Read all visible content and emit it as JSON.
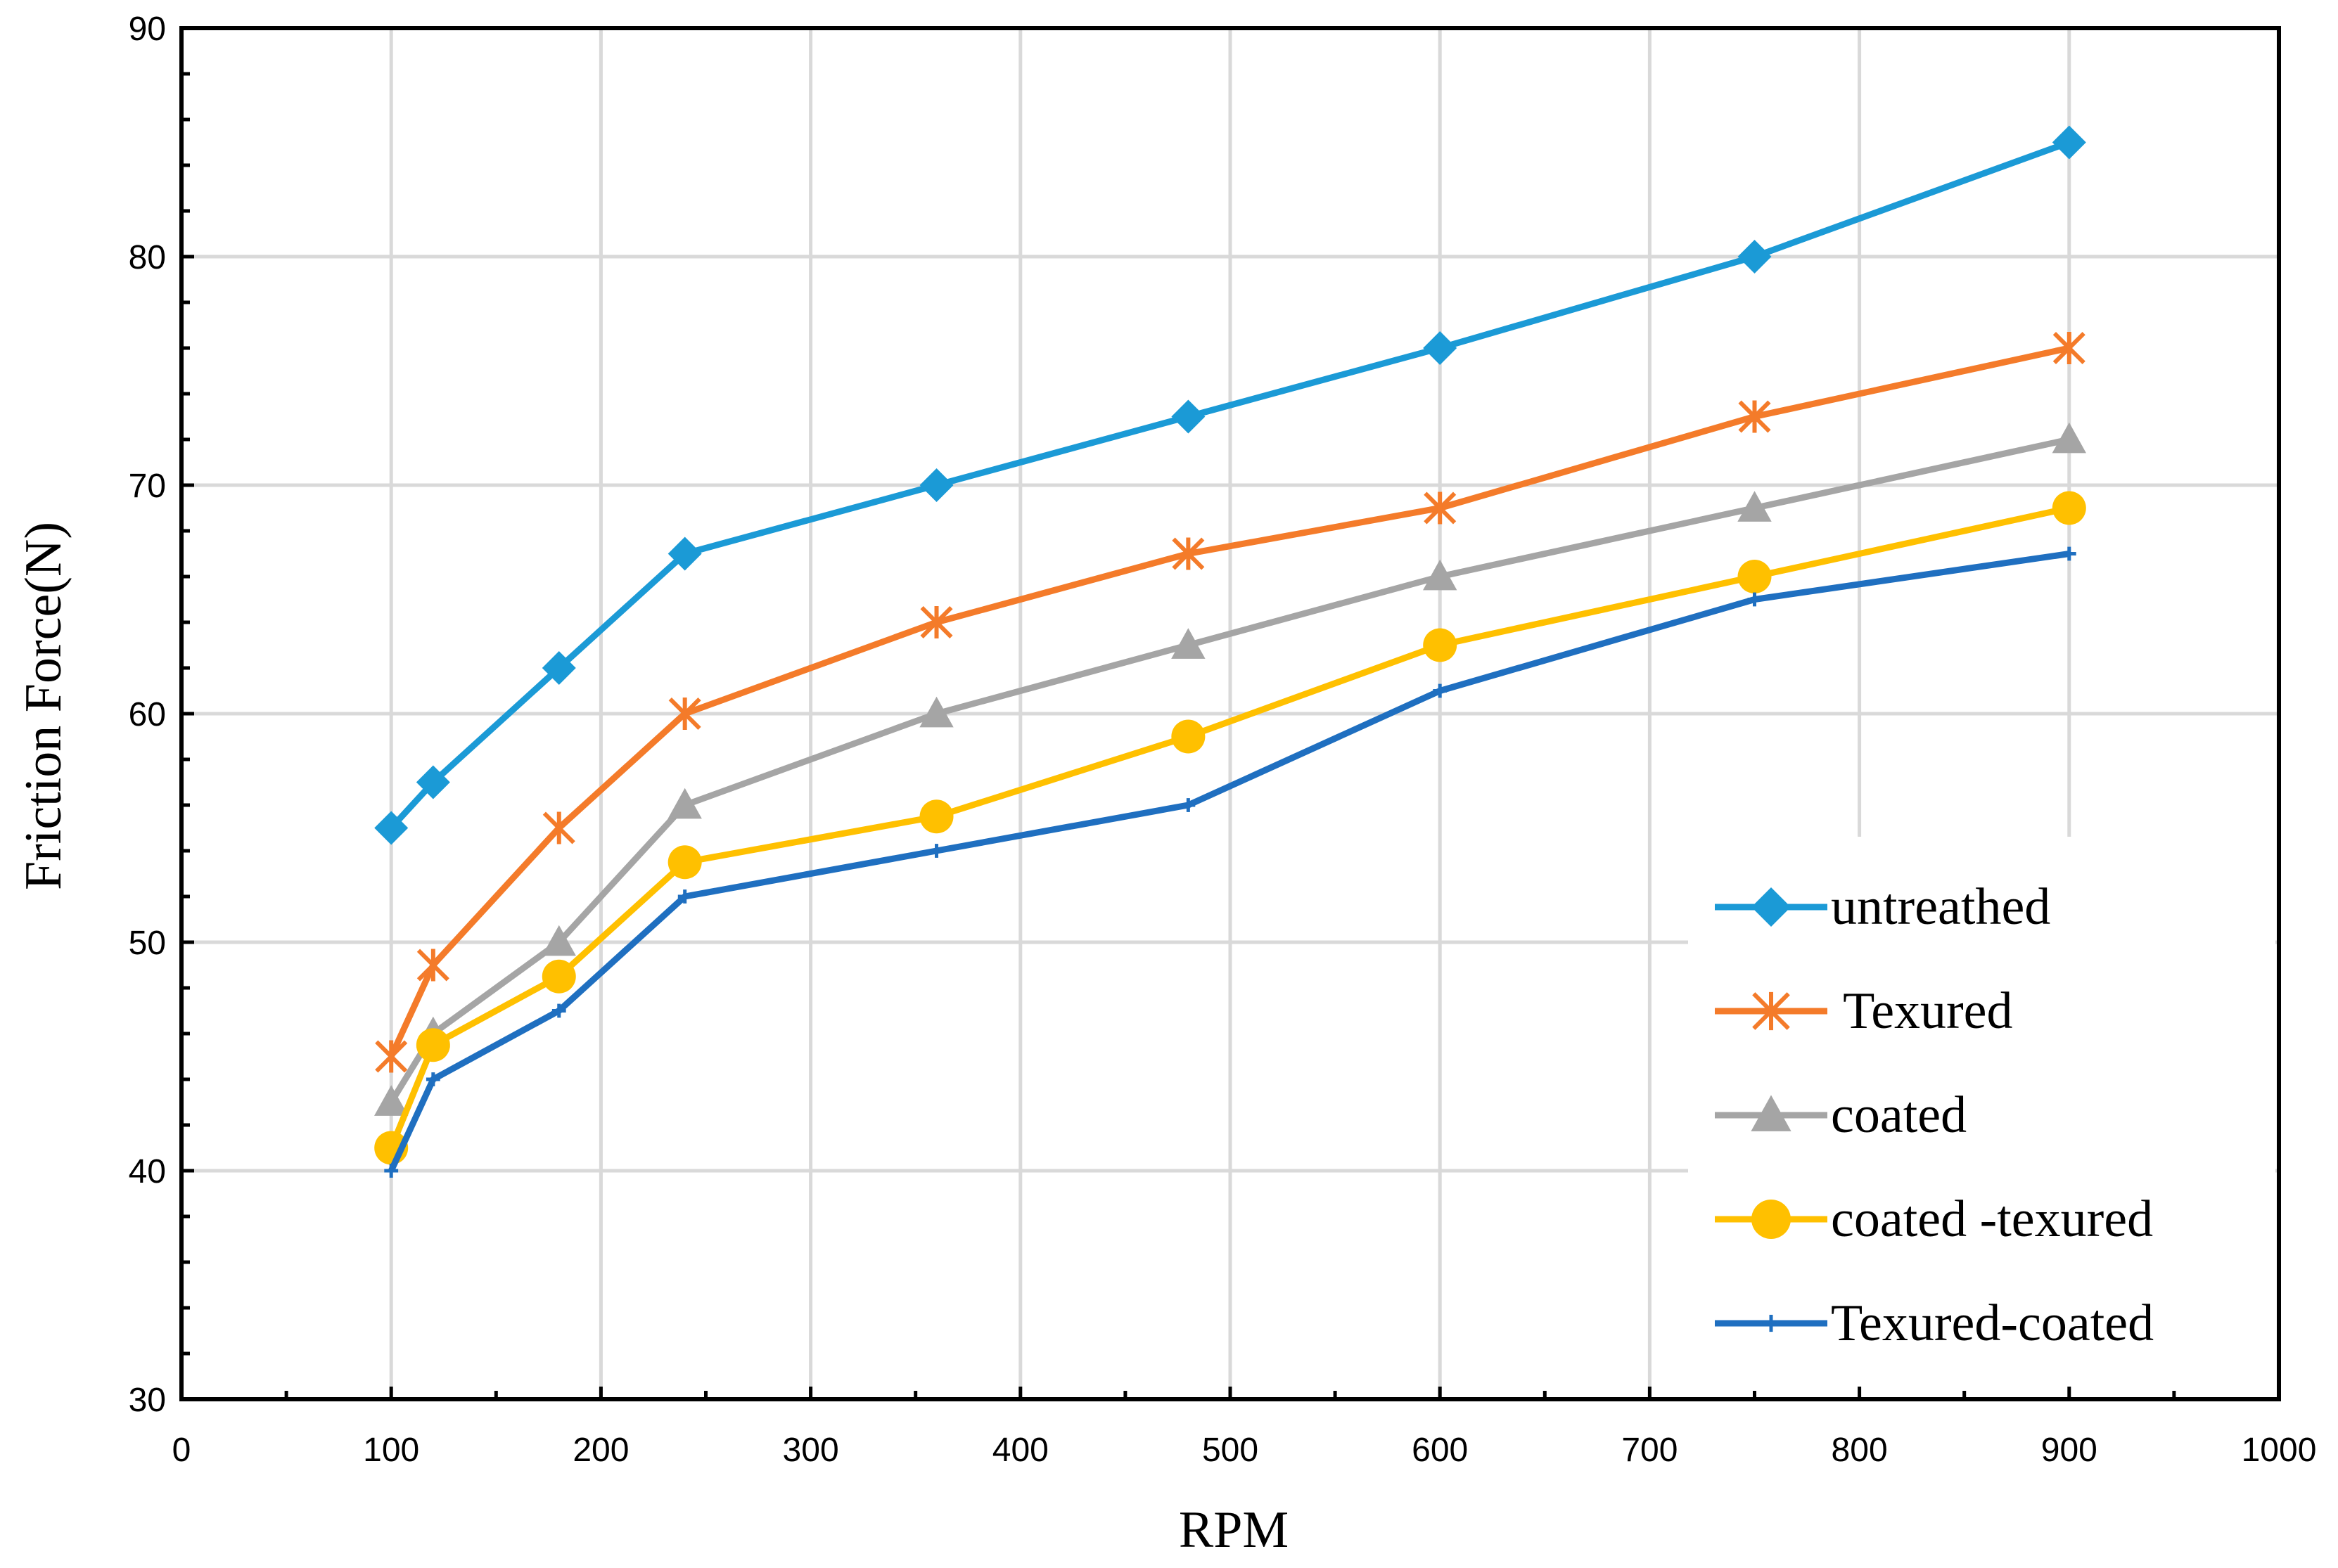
{
  "chart_data": {
    "type": "line",
    "title": "",
    "xlabel": "RPM",
    "ylabel": "Friction Force(N)",
    "xlim": [
      0,
      1000
    ],
    "ylim": [
      30,
      90
    ],
    "xticks": [
      0,
      100,
      200,
      300,
      400,
      500,
      600,
      700,
      800,
      900,
      1000
    ],
    "yticks": [
      30,
      40,
      50,
      60,
      70,
      80,
      90
    ],
    "grid": true,
    "legend_position": "bottom-right",
    "x": [
      100,
      120,
      180,
      240,
      360,
      480,
      600,
      750,
      900
    ],
    "series": [
      {
        "name": "untreathed",
        "color": "#1B9AD6",
        "marker": "diamond",
        "values": [
          55,
          57,
          62,
          67,
          70,
          73,
          76,
          80,
          85
        ]
      },
      {
        "name": " Texured",
        "color": "#F47B2A",
        "marker": "asterisk",
        "values": [
          45,
          49,
          55,
          60,
          64,
          67,
          69,
          73,
          76
        ]
      },
      {
        "name": "coated",
        "color": "#A5A5A5",
        "marker": "triangle",
        "values": [
          43,
          46,
          50,
          56,
          60,
          63,
          66,
          69,
          72
        ]
      },
      {
        "name": "coated -texured",
        "color": "#FFC000",
        "marker": "circle",
        "values": [
          41,
          45.5,
          48.5,
          53.5,
          55.5,
          59,
          63,
          66,
          69
        ]
      },
      {
        "name": "Texured-coated",
        "color": "#1F6FC0",
        "marker": "plus",
        "values": [
          40,
          44,
          47,
          52,
          54,
          56,
          61,
          65,
          67
        ]
      }
    ]
  }
}
